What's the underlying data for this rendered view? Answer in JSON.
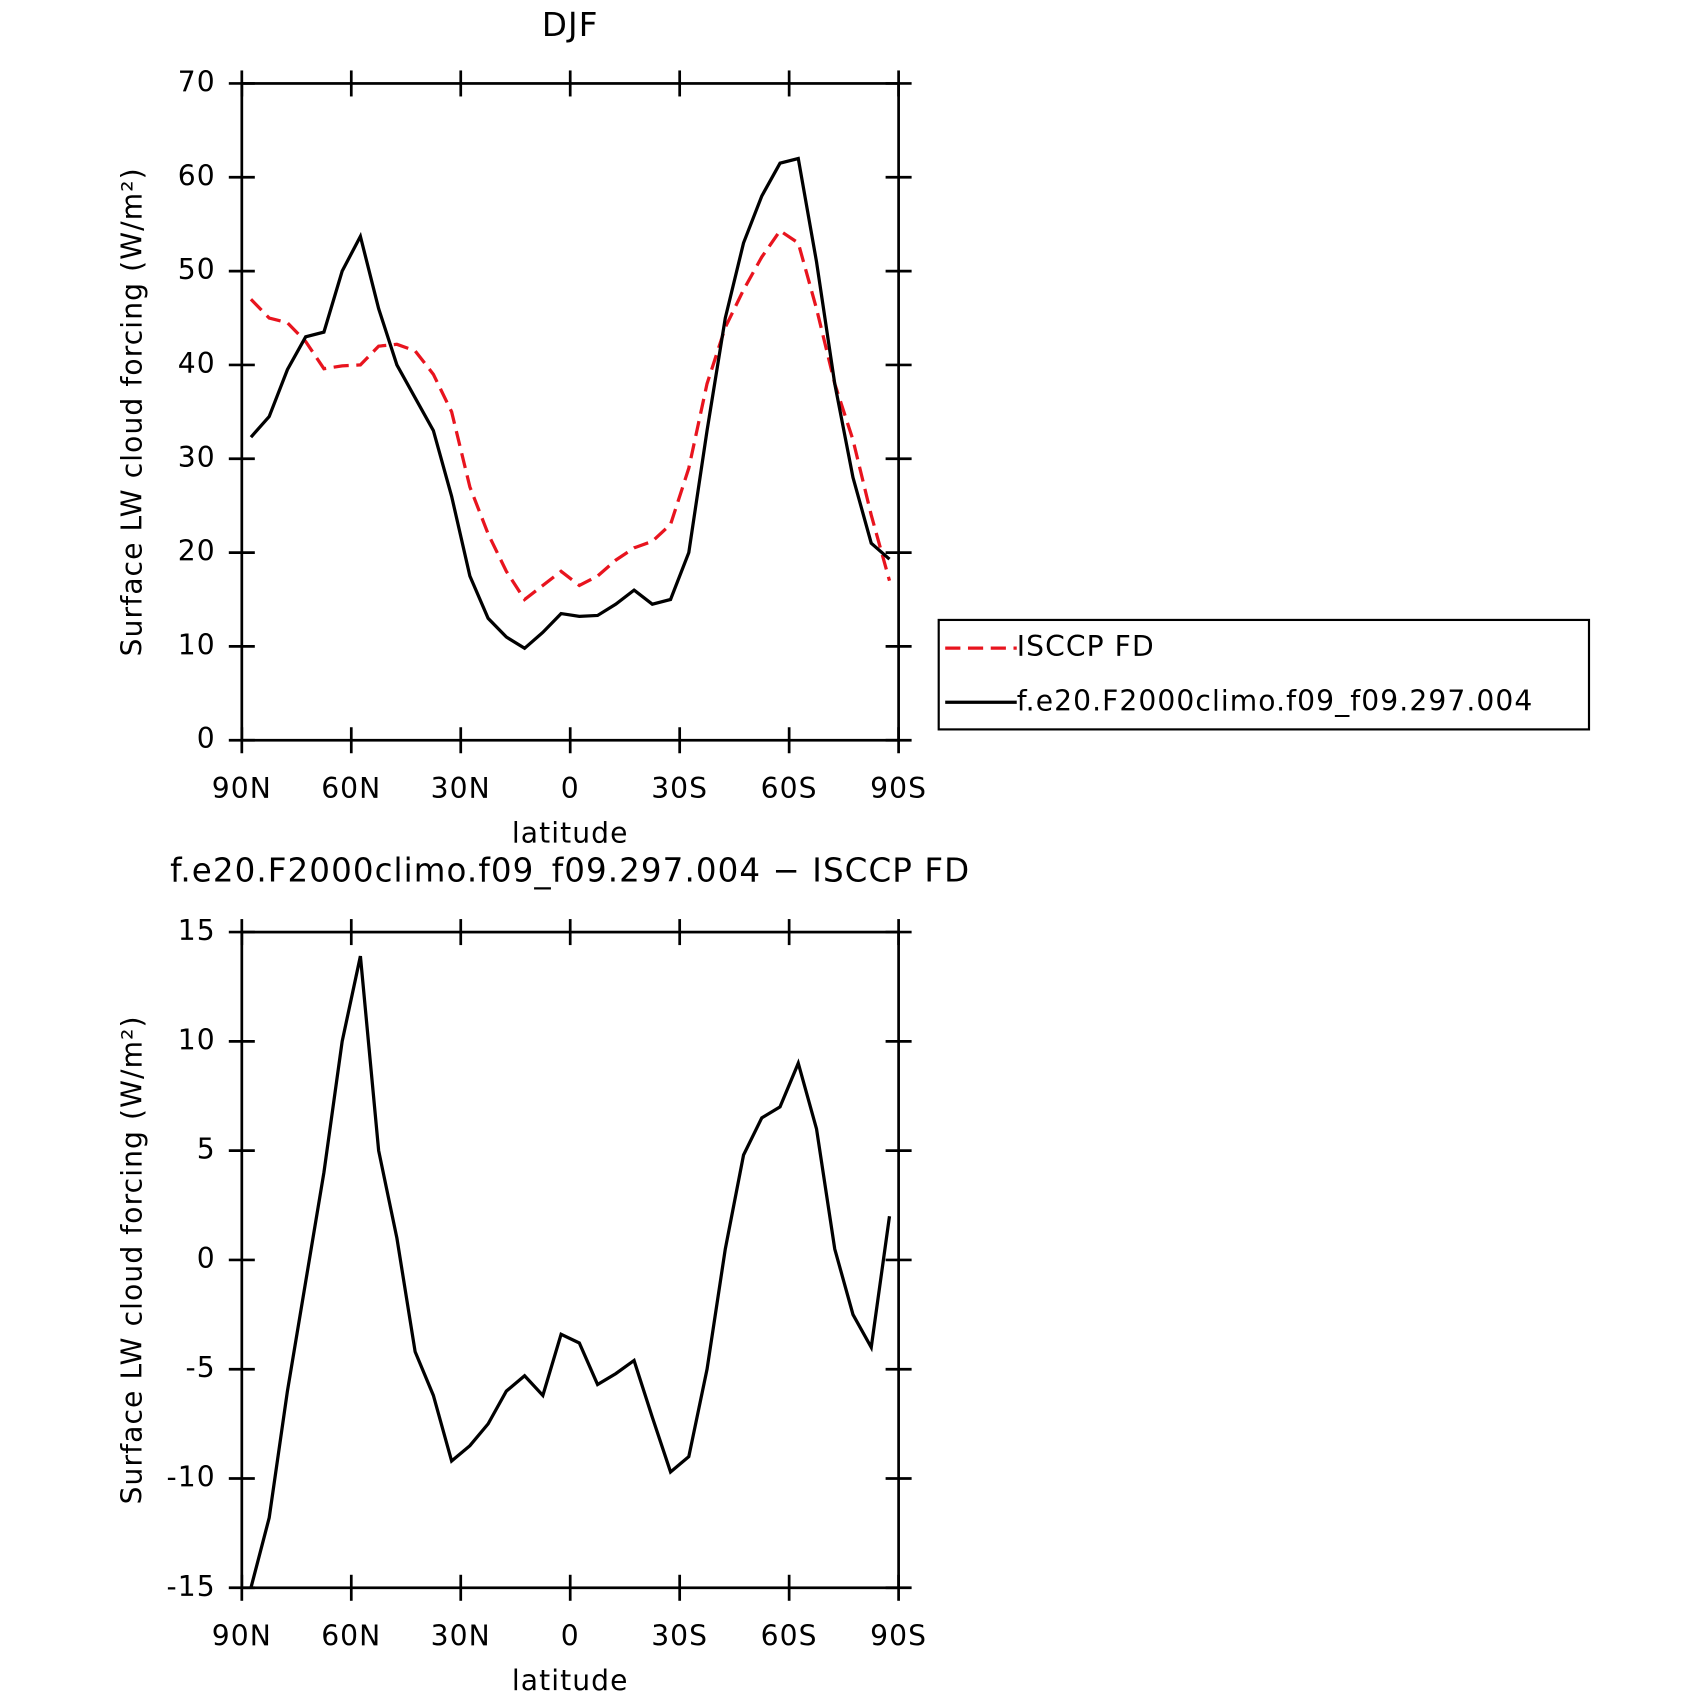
{
  "chart_data": [
    {
      "type": "line",
      "title": "DJF",
      "xlabel": "latitude",
      "ylabel": "Surface LW cloud forcing (W/m²)",
      "x": [
        87.5,
        82.5,
        77.5,
        72.5,
        67.5,
        62.5,
        57.5,
        52.5,
        47.5,
        42.5,
        37.5,
        32.5,
        27.5,
        22.5,
        17.5,
        12.5,
        7.5,
        2.5,
        -2.5,
        -7.5,
        -12.5,
        -17.5,
        -22.5,
        -27.5,
        -32.5,
        -37.5,
        -42.5,
        -47.5,
        -52.5,
        -57.5,
        -62.5,
        -67.5,
        -72.5,
        -77.5,
        -82.5,
        -87.5
      ],
      "series": [
        {
          "name": "ISCCP FD",
          "color": "#e8141e",
          "linestyle": "dashed",
          "values": [
            47,
            45,
            44.5,
            42.5,
            39.6,
            39.9,
            40,
            42,
            42.2,
            41.5,
            39,
            35,
            27,
            22,
            18,
            15,
            16.5,
            18,
            16.5,
            17.5,
            19.2,
            20.5,
            21.2,
            23,
            29,
            38,
            44,
            48,
            51.5,
            54.3,
            53,
            46,
            38,
            32,
            24,
            17
          ]
        },
        {
          "name": "f.e20.F2000climo.f09_f09.297.004",
          "color": "#000000",
          "linestyle": "solid",
          "values": [
            32.3,
            34.5,
            39.5,
            43,
            43.5,
            50,
            53.7,
            46,
            40,
            36.5,
            33,
            26,
            17.5,
            13,
            11,
            9.8,
            11.5,
            13.5,
            13.2,
            13.3,
            14.5,
            16,
            14.5,
            15,
            20,
            33,
            45,
            53,
            58,
            61.5,
            62,
            51,
            38,
            28,
            21,
            19.3
          ]
        }
      ],
      "xlim": [
        90,
        -90
      ],
      "xticks": [
        {
          "value": 90,
          "label": "90N"
        },
        {
          "value": 60,
          "label": "60N"
        },
        {
          "value": 30,
          "label": "30N"
        },
        0,
        {
          "value": -30,
          "label": "30S"
        },
        {
          "value": -60,
          "label": "60S"
        },
        {
          "value": -90,
          "label": "90S"
        }
      ],
      "ylim": [
        0,
        70
      ],
      "yticks": [
        0,
        10,
        20,
        30,
        40,
        50,
        60,
        70
      ],
      "legend": "right"
    },
    {
      "type": "line",
      "title": "f.e20.F2000climo.f09_f09.297.004 − ISCCP FD",
      "xlabel": "latitude",
      "ylabel": "Surface LW cloud forcing (W/m²)",
      "x": [
        87.5,
        82.5,
        77.5,
        72.5,
        67.5,
        62.5,
        57.5,
        52.5,
        47.5,
        42.5,
        37.5,
        32.5,
        27.5,
        22.5,
        17.5,
        12.5,
        7.5,
        2.5,
        -2.5,
        -7.5,
        -12.5,
        -17.5,
        -22.5,
        -27.5,
        -32.5,
        -37.5,
        -42.5,
        -47.5,
        -52.5,
        -57.5,
        -62.5,
        -67.5,
        -72.5,
        -77.5,
        -82.5,
        -87.5
      ],
      "series": [
        {
          "color": "#000000",
          "linestyle": "solid",
          "values": [
            -15,
            -11.8,
            -6,
            -1,
            4,
            10,
            13.9,
            5,
            1,
            -4.2,
            -6.2,
            -9.2,
            -8.5,
            -7.5,
            -6,
            -5.3,
            -6.2,
            -3.4,
            -3.8,
            -5.7,
            -5.2,
            -4.6,
            -7.2,
            -9.7,
            -9,
            -5,
            0.5,
            4.8,
            6.5,
            7,
            9,
            6,
            0.5,
            -2.5,
            -4,
            2
          ]
        }
      ],
      "xlim": [
        90,
        -90
      ],
      "xticks": [
        {
          "value": 90,
          "label": "90N"
        },
        {
          "value": 60,
          "label": "60N"
        },
        {
          "value": 30,
          "label": "30N"
        },
        0,
        {
          "value": -30,
          "label": "30S"
        },
        {
          "value": -60,
          "label": "60S"
        },
        {
          "value": -90,
          "label": "90S"
        }
      ],
      "ylim": [
        -15,
        15
      ],
      "yticks": [
        -15,
        -10,
        -5,
        0,
        5,
        10,
        15
      ]
    }
  ]
}
